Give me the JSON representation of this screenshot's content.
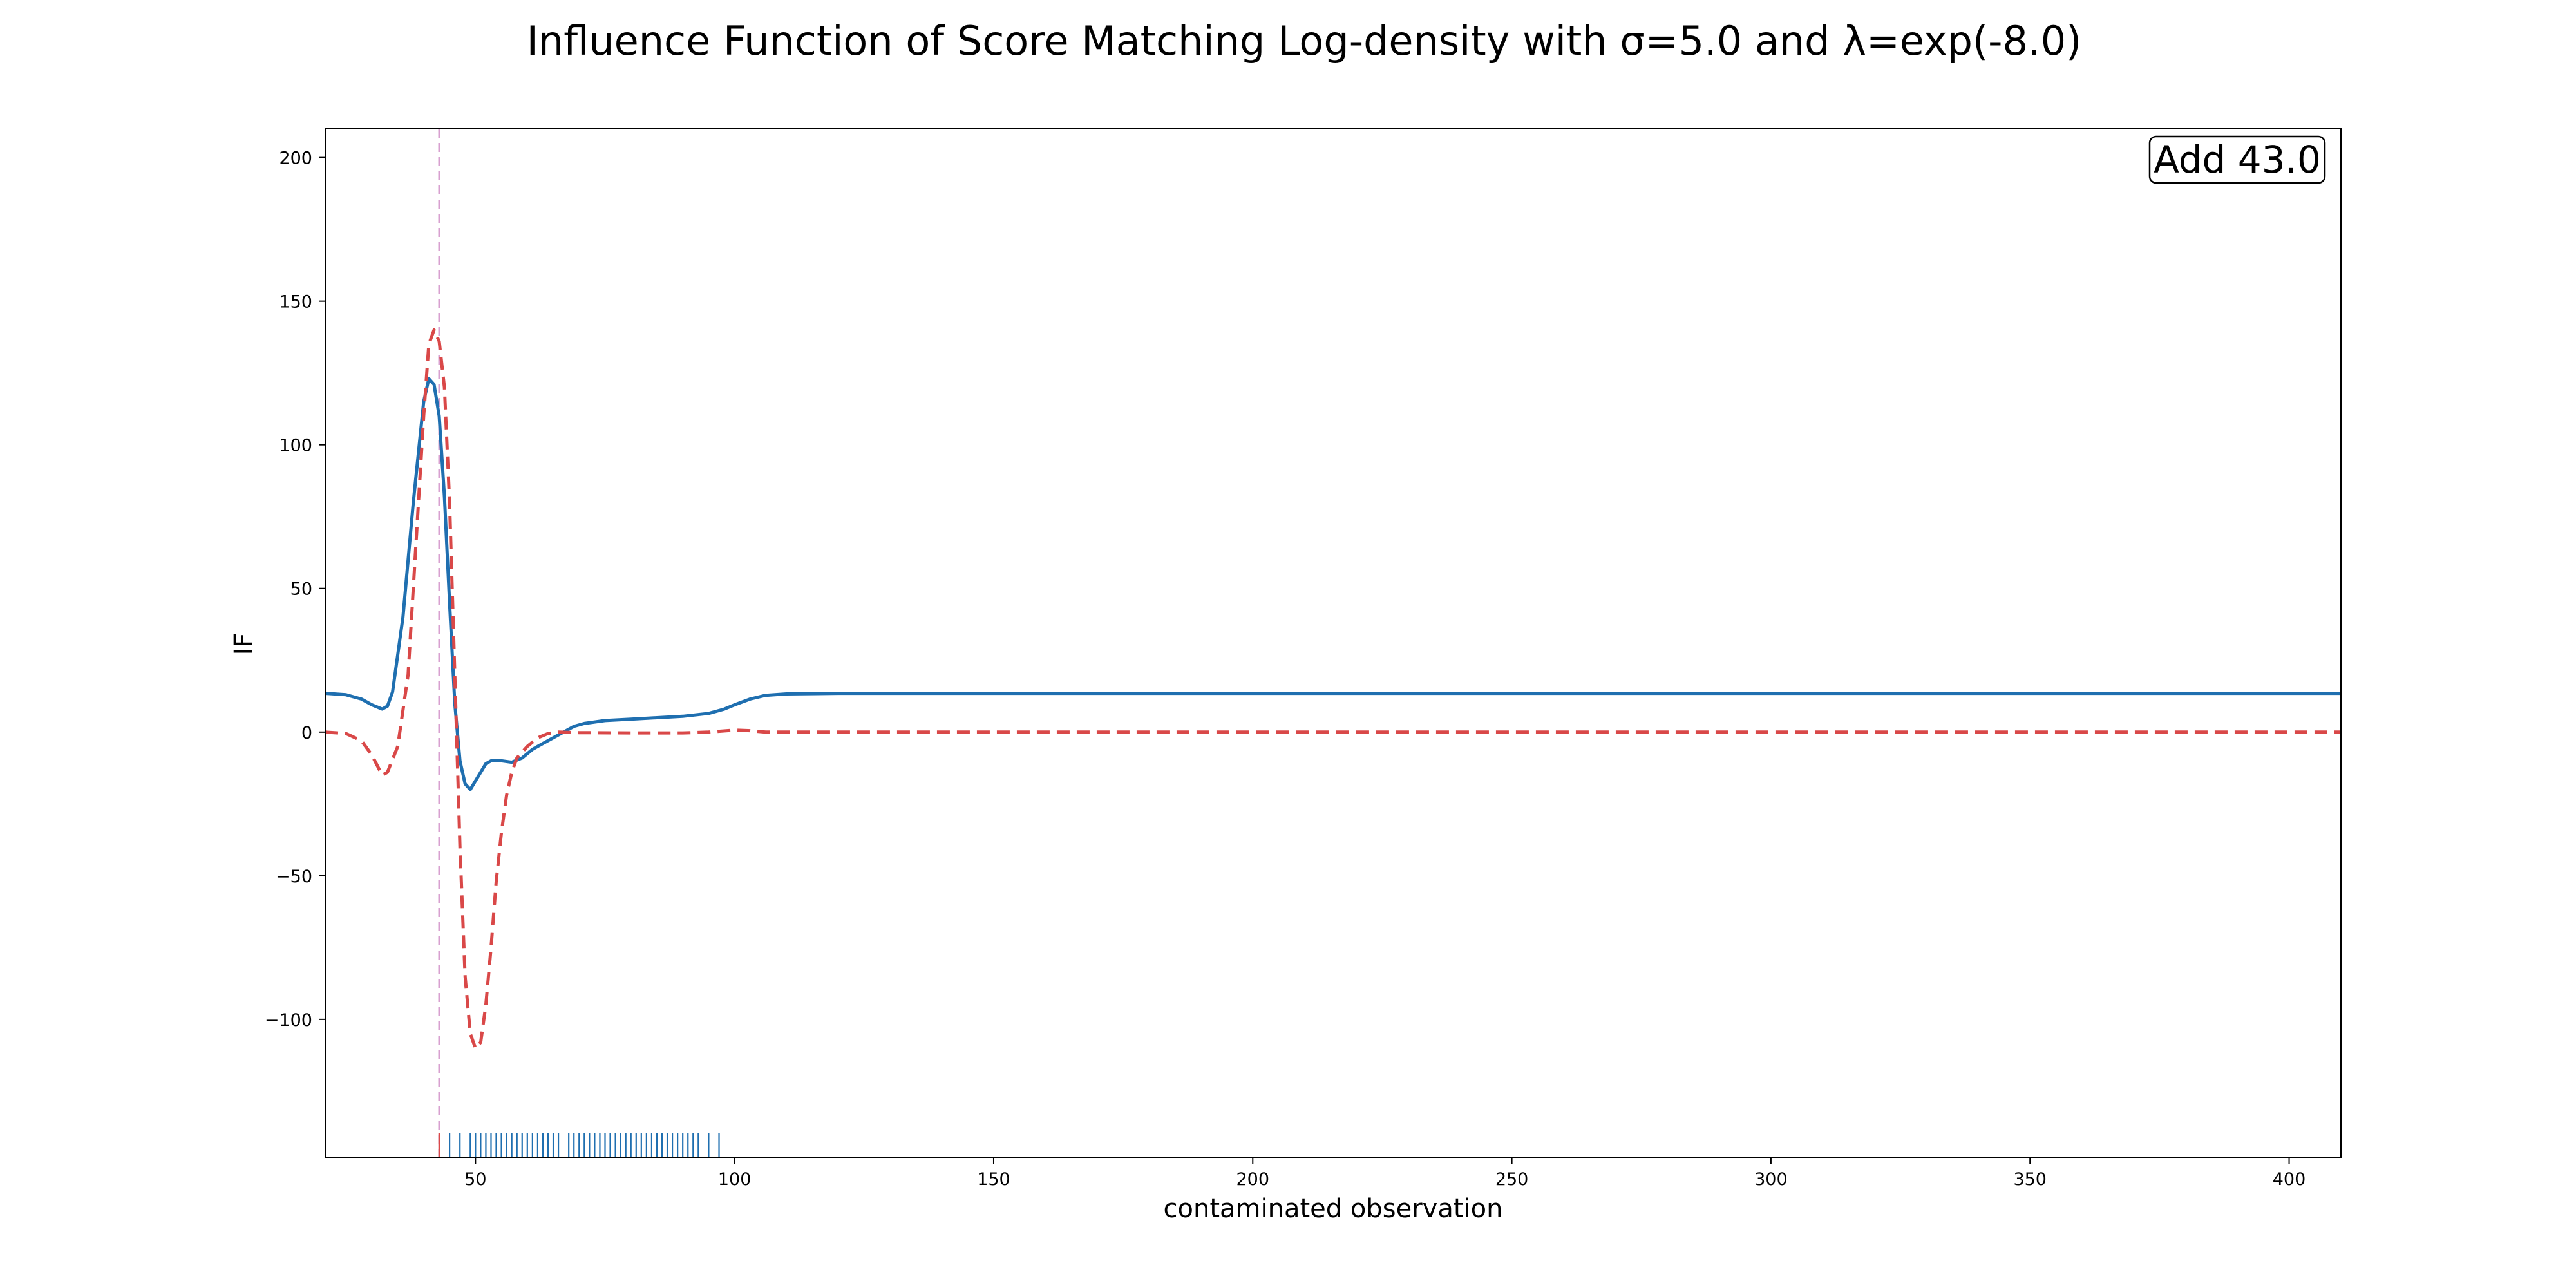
{
  "chart_data": {
    "type": "line",
    "title": "Influence Function of Score Matching Log-density with σ=5.0 and λ=exp(-8.0)",
    "xlabel": "contaminated observation",
    "ylabel": "IF",
    "xlim": [
      21,
      410
    ],
    "ylim": [
      -148,
      210
    ],
    "xticks": [
      50,
      100,
      150,
      200,
      250,
      300,
      350,
      400
    ],
    "yticks": [
      -100,
      -50,
      0,
      50,
      100,
      150,
      200
    ],
    "xtick_labels": [
      "50",
      "100",
      "150",
      "200",
      "250",
      "300",
      "350",
      "400"
    ],
    "ytick_labels": [
      "−100",
      "−50",
      "0",
      "50",
      "100",
      "150",
      "200"
    ],
    "grid": false,
    "annotation": "Add 43.0",
    "annotation_position": "top-right",
    "vline": {
      "x": 43.0,
      "color": "#d8a0d0",
      "style": "dashed"
    },
    "series": [
      {
        "color": "#1f6fb0",
        "style": "solid",
        "points": [
          [
            21,
            13.5
          ],
          [
            25,
            13
          ],
          [
            28,
            11.5
          ],
          [
            30,
            9.5
          ],
          [
            32,
            8
          ],
          [
            33,
            9
          ],
          [
            34,
            14
          ],
          [
            36,
            40
          ],
          [
            38,
            80
          ],
          [
            40,
            115
          ],
          [
            41,
            123
          ],
          [
            42,
            121
          ],
          [
            43,
            110
          ],
          [
            44,
            82
          ],
          [
            45,
            45
          ],
          [
            46,
            10
          ],
          [
            47,
            -10
          ],
          [
            48,
            -18
          ],
          [
            49,
            -20
          ],
          [
            50,
            -17
          ],
          [
            51,
            -14
          ],
          [
            52,
            -11
          ],
          [
            53,
            -10
          ],
          [
            55,
            -10
          ],
          [
            57,
            -10.5
          ],
          [
            59,
            -9
          ],
          [
            61,
            -6
          ],
          [
            63,
            -4
          ],
          [
            65,
            -2
          ],
          [
            67,
            0
          ],
          [
            69,
            2
          ],
          [
            71,
            3
          ],
          [
            75,
            4
          ],
          [
            80,
            4.5
          ],
          [
            85,
            5
          ],
          [
            90,
            5.5
          ],
          [
            95,
            6.5
          ],
          [
            98,
            8
          ],
          [
            100,
            9.5
          ],
          [
            103,
            11.5
          ],
          [
            106,
            12.8
          ],
          [
            110,
            13.3
          ],
          [
            120,
            13.5
          ],
          [
            410,
            13.5
          ]
        ]
      },
      {
        "color": "#d94848",
        "style": "dashed",
        "points": [
          [
            21,
            0
          ],
          [
            25,
            -0.5
          ],
          [
            28,
            -3
          ],
          [
            30,
            -8
          ],
          [
            32,
            -15
          ],
          [
            33,
            -14
          ],
          [
            35,
            -5
          ],
          [
            37,
            20
          ],
          [
            39,
            80
          ],
          [
            40,
            110
          ],
          [
            41,
            135
          ],
          [
            42,
            140
          ],
          [
            43,
            136
          ],
          [
            44,
            120
          ],
          [
            45,
            80
          ],
          [
            46,
            20
          ],
          [
            47,
            -40
          ],
          [
            48,
            -85
          ],
          [
            49,
            -105
          ],
          [
            50,
            -110
          ],
          [
            51,
            -108
          ],
          [
            52,
            -95
          ],
          [
            53,
            -75
          ],
          [
            54,
            -52
          ],
          [
            55,
            -35
          ],
          [
            56,
            -22
          ],
          [
            57,
            -14
          ],
          [
            58,
            -9
          ],
          [
            60,
            -5
          ],
          [
            62,
            -2
          ],
          [
            64,
            -0.5
          ],
          [
            66,
            0
          ],
          [
            70,
            -0.2
          ],
          [
            80,
            -0.3
          ],
          [
            90,
            -0.3
          ],
          [
            95,
            0
          ],
          [
            100,
            0.7
          ],
          [
            103,
            0.5
          ],
          [
            106,
            0
          ],
          [
            120,
            0
          ],
          [
            410,
            0
          ]
        ]
      }
    ],
    "rug": {
      "color": "#1f6fb0",
      "marked_color": "#d94848",
      "marked": [
        43.0
      ],
      "values": [
        45,
        47,
        49,
        50,
        51,
        52,
        53,
        54,
        55,
        56,
        57,
        58,
        59,
        60,
        61,
        62,
        63,
        64,
        65,
        66,
        68,
        69,
        70,
        71,
        72,
        73,
        74,
        75,
        76,
        77,
        78,
        79,
        80,
        81,
        82,
        83,
        84,
        85,
        86,
        87,
        88,
        89,
        90,
        91,
        92,
        93,
        95,
        97
      ]
    }
  }
}
